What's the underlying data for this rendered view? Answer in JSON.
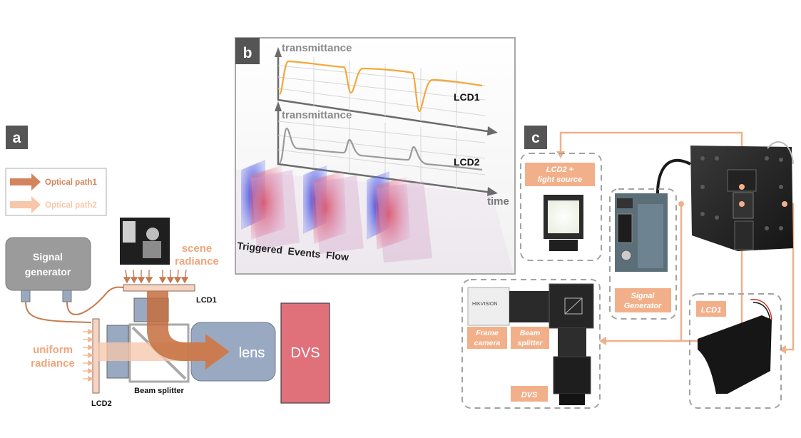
{
  "panel_a": {
    "badge": "a",
    "legend": {
      "path1": "Optical path1",
      "path2": "Optical path2"
    },
    "signal_generator": "Signal generator",
    "scene_radiance": "scene radiance",
    "uniform_radiance": "uniform radiance",
    "lcd1": "LCD1",
    "lcd2": "LCD2",
    "beam_splitter": "Beam splitter",
    "lens": "lens",
    "dvs": "DVS"
  },
  "panel_b": {
    "badge": "b",
    "top_ylabel": "transmittance",
    "bottom_ylabel": "transmittance",
    "lcd1": "LCD1",
    "lcd2": "LCD2",
    "xlabel": "time",
    "events_caption": "Triggered  Events  Flow"
  },
  "panel_c": {
    "badge": "c",
    "lcd2_light": "LCD2 +\nlight source",
    "signal_gen": "Signal\nGenerator",
    "lcd1": "LCD1",
    "frame_camera": "Frame\ncamera",
    "beam_splitter": "Beam\nsplitter",
    "dvs": "DVS"
  },
  "colors": {
    "path1": "#d4845c",
    "path2": "#f6c7aa",
    "tag_fill": "#f2b08a",
    "lcd1_curve": "#f2a93a",
    "lcd2_curve": "#9a9a9a",
    "dvs_box": "#e0707a",
    "lens_box": "#9aa9c2"
  }
}
